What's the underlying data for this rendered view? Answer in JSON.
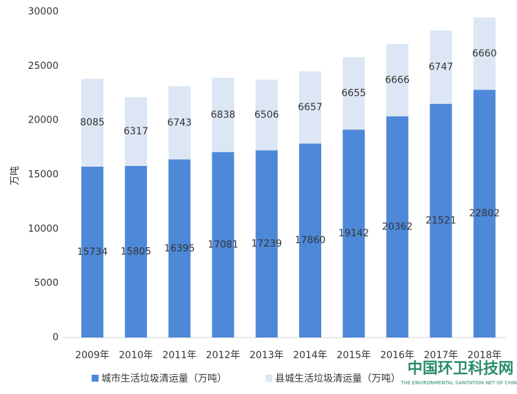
{
  "chart_data": {
    "type": "stacked_bar",
    "y_label": "万吨",
    "categories": [
      "2009年",
      "2010年",
      "2011年",
      "2012年",
      "2013年",
      "2014年",
      "2015年",
      "2016年",
      "2017年",
      "2018年"
    ],
    "series": [
      {
        "name": "城市生活垃圾清运量（万吨）",
        "color": "#4e88d8",
        "values": [
          15734,
          15805,
          16395,
          17081,
          17239,
          17860,
          19142,
          20362,
          21521,
          22802
        ]
      },
      {
        "name": "县城生活垃圾清运量（万吨）",
        "color": "#dce6f4",
        "values": [
          8085,
          6317,
          6743,
          6838,
          6506,
          6657,
          6655,
          6666,
          6747,
          6660
        ]
      }
    ],
    "ylim": [
      0,
      30000
    ],
    "yticks": [
      0,
      5000,
      10000,
      15000,
      20000,
      25000,
      30000
    ],
    "grid": false,
    "watermark": "中国环卫科技网",
    "watermark_subtitle": "THE ENVIRONMENTAL SANITATION NET OF CHINA"
  }
}
